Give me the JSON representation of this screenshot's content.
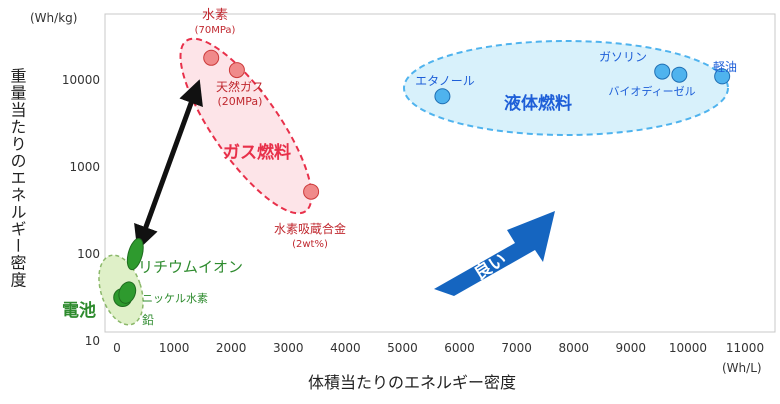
{
  "chart_data": {
    "type": "scatter",
    "title": "",
    "xlabel": "体積当たりのエネルギー密度",
    "ylabel": "重量当たりのエネルギー密度",
    "xunit": "(Wh/L)",
    "yunit": "(Wh/kg)",
    "xscale": "linear",
    "yscale": "log",
    "xlim": [
      0,
      11500
    ],
    "ylim": [
      10,
      30000
    ],
    "xticks": [
      0,
      1000,
      2000,
      3000,
      4000,
      5000,
      6000,
      7000,
      8000,
      9000,
      10000,
      11000
    ],
    "yticks": [
      10,
      100,
      1000,
      10000
    ],
    "grid": "none",
    "series": [
      {
        "name": "ガス燃料",
        "color": "#e8304a",
        "fill": "#f08a8a",
        "points": [
          {
            "x": 1650,
            "y": 18000,
            "label": "水素",
            "sublabel": "(70MPa)"
          },
          {
            "x": 2100,
            "y": 13000,
            "label": "天然ガス",
            "sublabel": "(20MPa)"
          },
          {
            "x": 3400,
            "y": 520,
            "label": "水素吸蔵合金",
            "sublabel": "(2wt%)"
          }
        ]
      },
      {
        "name": "液体燃料",
        "color": "#1e5fd8",
        "fill": "#4fb3ee",
        "points": [
          {
            "x": 5700,
            "y": 6500,
            "label": "エタノール"
          },
          {
            "x": 9550,
            "y": 12500,
            "label": "ガソリン"
          },
          {
            "x": 9850,
            "y": 11500,
            "label": "バイオディーゼル"
          },
          {
            "x": 10600,
            "y": 11000,
            "label": "軽油"
          }
        ]
      },
      {
        "name": "電池",
        "color": "#2e8b2e",
        "fill": "#2e9a2e",
        "points": [
          {
            "x": 320,
            "y": 130,
            "label": "リチウムイオン"
          },
          {
            "x": 180,
            "y": 40,
            "label": "ニッケル水素"
          },
          {
            "x": 100,
            "y": 30,
            "label": "鉛"
          }
        ]
      }
    ],
    "annotations": [
      {
        "text": "良い",
        "type": "arrow"
      }
    ]
  }
}
